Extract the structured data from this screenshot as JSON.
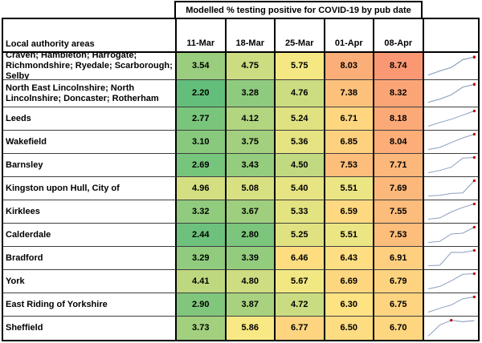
{
  "title": "Modelled % testing positive for COVID-19 by pub date",
  "chart_data": {
    "type": "heatmap",
    "title": "Modelled % testing positive for COVID-19 by pub date",
    "row_label_header": "Local authority areas",
    "columns": [
      "11-Mar",
      "18-Mar",
      "25-Mar",
      "01-Apr",
      "08-Apr"
    ],
    "rows": [
      {
        "area": "Craven; Hambleton; Harrogate; Richmondshire; Ryedale; Scarborough; Selby",
        "values": [
          3.54,
          4.75,
          5.75,
          8.03,
          8.74
        ]
      },
      {
        "area": "North East Lincolnshire; North Lincolnshire; Doncaster; Rotherham",
        "values": [
          2.2,
          3.28,
          4.76,
          7.38,
          8.32
        ]
      },
      {
        "area": "Leeds",
        "values": [
          2.77,
          4.12,
          5.24,
          6.71,
          8.18
        ]
      },
      {
        "area": "Wakefield",
        "values": [
          3.1,
          3.75,
          5.36,
          6.85,
          8.04
        ]
      },
      {
        "area": "Barnsley",
        "values": [
          2.69,
          3.43,
          4.5,
          7.53,
          7.71
        ]
      },
      {
        "area": "Kingston upon Hull, City of",
        "values": [
          4.96,
          5.08,
          5.4,
          5.51,
          7.69
        ]
      },
      {
        "area": "Kirklees",
        "values": [
          3.32,
          3.67,
          5.33,
          6.59,
          7.55
        ]
      },
      {
        "area": "Calderdale",
        "values": [
          2.44,
          2.8,
          5.25,
          5.51,
          7.53
        ]
      },
      {
        "area": "Bradford",
        "values": [
          3.29,
          3.39,
          6.46,
          6.43,
          6.91
        ]
      },
      {
        "area": "York",
        "values": [
          4.41,
          4.8,
          5.67,
          6.69,
          6.79
        ]
      },
      {
        "area": "East Riding of Yorkshire",
        "values": [
          2.9,
          3.87,
          4.72,
          6.3,
          6.75
        ]
      },
      {
        "area": "Sheffield",
        "values": [
          3.73,
          5.86,
          6.77,
          6.5,
          6.7
        ]
      }
    ],
    "color_scale": {
      "min_value": 2.2,
      "min_color": "#63BE7B",
      "mid_value": 6.0,
      "mid_color": "#FFEB84",
      "max_value": 10.3,
      "max_color": "#F8696B"
    },
    "sparklines": {
      "type": "line",
      "per_row_scaling": true,
      "line_color": "#8CA0BE",
      "high_point_marker_color": "#C00000"
    },
    "value_format": "0.00",
    "grid": true,
    "legend": false
  }
}
